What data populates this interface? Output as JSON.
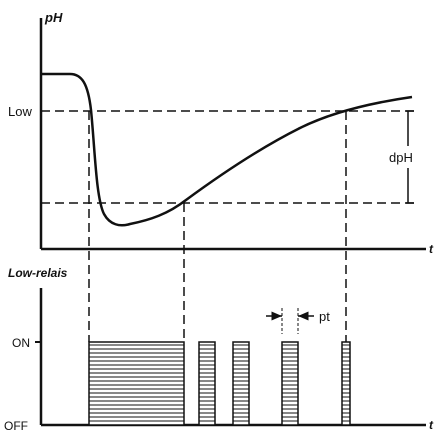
{
  "top_plot": {
    "y_axis_label": "pH",
    "x_axis_label": "t",
    "low_label": "Low",
    "dph_label": "dpH"
  },
  "bottom_plot": {
    "y_axis_label": "Low-relais",
    "x_axis_label": "t",
    "on_label": "ON",
    "off_label": "OFF",
    "pt_label": "pt"
  }
}
